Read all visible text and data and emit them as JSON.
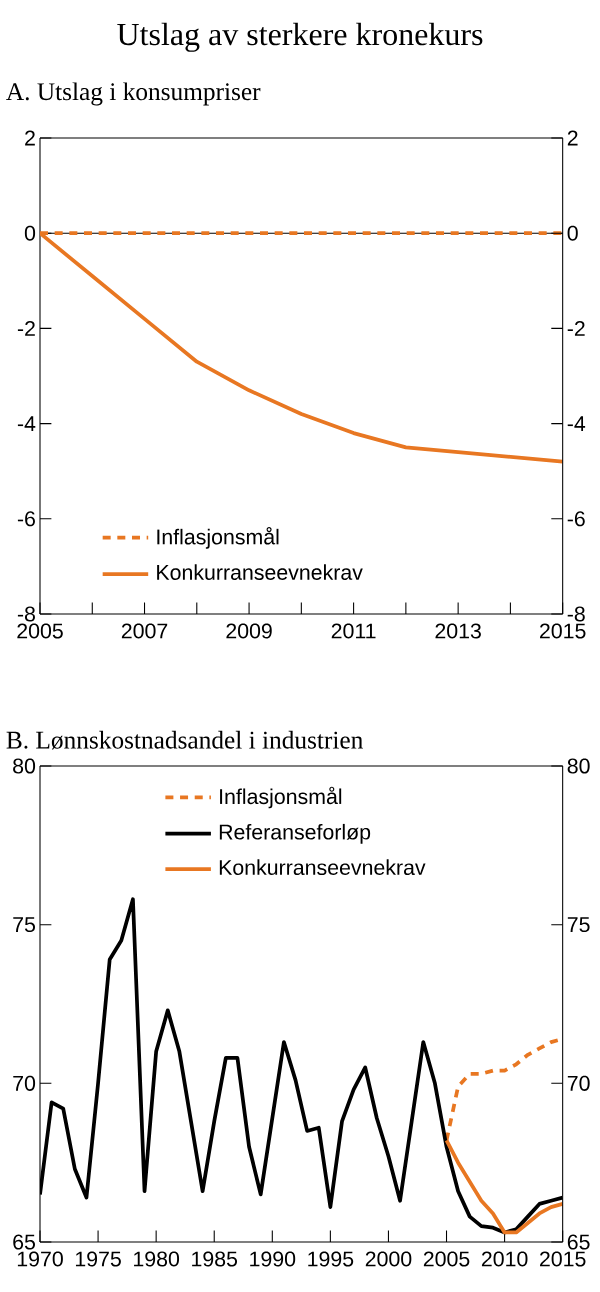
{
  "chart_data": [
    {
      "type": "line",
      "title": "Utslag av sterkere kronekurs",
      "subtitle": "A. Utslag i konsumpriser",
      "x": [
        2005,
        2006,
        2007,
        2008,
        2009,
        2010,
        2011,
        2012,
        2013,
        2014,
        2015
      ],
      "xlim": [
        2005,
        2015
      ],
      "xticks": [
        2005,
        {
          "value": 2006,
          "label": null
        },
        2007,
        {
          "value": 2008,
          "label": null
        },
        2009,
        {
          "value": 2010,
          "label": null
        },
        2011,
        {
          "value": 2012,
          "label": null
        },
        2013,
        {
          "value": 2014,
          "label": null
        },
        2015
      ],
      "ylim": [
        -8,
        2
      ],
      "yticks": [
        -8,
        -6,
        -4,
        -2,
        0,
        2
      ],
      "y2lim": [
        -8,
        2
      ],
      "y2ticks": [
        -8,
        -6,
        -4,
        -2,
        0,
        2
      ],
      "legend": "bottom left",
      "marker": "none",
      "ref_lines": [
        {
          "axis": "y",
          "value": 0,
          "color": "#000000"
        }
      ],
      "series": [
        {
          "name": "Inflasjonsmål",
          "color": "#e87722",
          "line_style": "dashed",
          "values": [
            0,
            0,
            0,
            0,
            0,
            0,
            0,
            0,
            0,
            0,
            0
          ]
        },
        {
          "name": "Konkurranseevnekrav",
          "color": "#e87722",
          "line_style": "solid",
          "values": [
            0,
            -0.9,
            -1.8,
            -2.7,
            -3.3,
            -3.8,
            -4.2,
            -4.5,
            -4.6,
            -4.7,
            -4.8
          ]
        }
      ]
    },
    {
      "type": "line",
      "title": "B. Lønnskostnadsandel i industrien",
      "x": [
        1970,
        1971,
        1972,
        1973,
        1974,
        1975,
        1976,
        1977,
        1978,
        1979,
        1980,
        1981,
        1982,
        1983,
        1984,
        1985,
        1986,
        1987,
        1988,
        1989,
        1990,
        1991,
        1992,
        1993,
        1994,
        1995,
        1996,
        1997,
        1998,
        1999,
        2000,
        2001,
        2002,
        2003,
        2004,
        2005,
        2006,
        2007,
        2008,
        2009,
        2010,
        2011,
        2012,
        2013,
        2014,
        2015
      ],
      "xlim": [
        1970,
        2015
      ],
      "xticks": [
        1970,
        1975,
        1980,
        1985,
        1990,
        1995,
        2000,
        2005,
        2010,
        2015
      ],
      "ylim": [
        65,
        80
      ],
      "yticks": [
        65,
        70,
        75,
        80
      ],
      "y2lim": [
        65,
        80
      ],
      "y2ticks": [
        65,
        70,
        75,
        80
      ],
      "legend": "top",
      "marker": "none",
      "series": [
        {
          "name": "Inflasjonsmål",
          "color": "#e87722",
          "line_style": "dashed",
          "x": [
            2005,
            2006,
            2007,
            2008,
            2009,
            2010,
            2011,
            2012,
            2013,
            2014,
            2015
          ],
          "values": [
            68.2,
            69.9,
            70.3,
            70.3,
            70.4,
            70.4,
            70.6,
            70.9,
            71.1,
            71.3,
            71.4
          ]
        },
        {
          "name": "Referanseforløp",
          "color": "#000000",
          "line_style": "solid",
          "values": [
            66.5,
            69.4,
            69.2,
            67.3,
            66.4,
            70.0,
            73.9,
            74.5,
            75.8,
            66.6,
            71.0,
            72.3,
            71.0,
            68.8,
            66.6,
            68.8,
            70.8,
            70.8,
            68.0,
            66.5,
            68.9,
            71.3,
            70.1,
            68.5,
            68.6,
            66.1,
            68.8,
            69.8,
            70.5,
            68.9,
            67.7,
            66.3,
            68.8,
            71.3,
            70.0,
            68.0,
            66.6,
            65.8,
            65.5,
            65.45,
            65.3,
            65.4,
            65.8,
            66.2,
            66.3,
            66.4
          ]
        },
        {
          "name": "Konkurranseevnekrav",
          "color": "#e87722",
          "line_style": "solid",
          "x": [
            2005,
            2006,
            2007,
            2008,
            2009,
            2010,
            2011,
            2012,
            2013,
            2014,
            2015
          ],
          "values": [
            68.2,
            67.5,
            66.9,
            66.3,
            65.9,
            65.3,
            65.3,
            65.6,
            65.9,
            66.1,
            66.2
          ]
        }
      ]
    }
  ]
}
